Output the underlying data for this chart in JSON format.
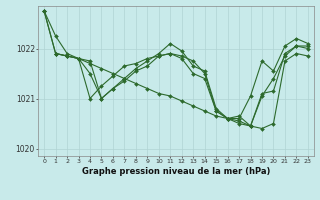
{
  "background_color": "#c8eaea",
  "grid_color": "#b0d4d4",
  "line_color": "#2d6a2d",
  "title": "Graphe pression niveau de la mer (hPa)",
  "xlim": [
    -0.5,
    23.5
  ],
  "ylim": [
    1019.85,
    1022.85
  ],
  "yticks": [
    1020,
    1021,
    1022
  ],
  "xticks": [
    0,
    1,
    2,
    3,
    4,
    5,
    6,
    7,
    8,
    9,
    10,
    11,
    12,
    13,
    14,
    15,
    16,
    17,
    18,
    19,
    20,
    21,
    22,
    23
  ],
  "series1_x": [
    0,
    1,
    2,
    3,
    4,
    5,
    6,
    7,
    8,
    9,
    10,
    11,
    12,
    13,
    14,
    15,
    16,
    17,
    18,
    19,
    20,
    21,
    22,
    23
  ],
  "series1_y": [
    1022.75,
    1022.25,
    1021.9,
    1021.8,
    1021.7,
    1021.6,
    1021.5,
    1021.4,
    1021.3,
    1021.2,
    1021.1,
    1021.05,
    1020.95,
    1020.85,
    1020.75,
    1020.65,
    1020.6,
    1020.5,
    1020.45,
    1020.4,
    1020.5,
    1021.75,
    1021.9,
    1021.85
  ],
  "series2_x": [
    0,
    1,
    2,
    3,
    4,
    5,
    6,
    7,
    8,
    9,
    10,
    11,
    12,
    13,
    14,
    15,
    16,
    17,
    18,
    19,
    20,
    21,
    22,
    23
  ],
  "series2_y": [
    1022.75,
    1021.9,
    1021.85,
    1021.8,
    1021.75,
    1021.0,
    1021.2,
    1021.4,
    1021.6,
    1021.75,
    1021.9,
    1022.1,
    1021.95,
    1021.65,
    1021.55,
    1020.8,
    1020.6,
    1020.55,
    1020.45,
    1021.1,
    1021.15,
    1021.9,
    1022.05,
    1022.0
  ],
  "series3_x": [
    0,
    1,
    2,
    3,
    4,
    5,
    6,
    7,
    8,
    9,
    10,
    11,
    12,
    13,
    14,
    15,
    16,
    17,
    18,
    19,
    20,
    21,
    22,
    23
  ],
  "series3_y": [
    1022.75,
    1021.9,
    1021.85,
    1021.8,
    1021.0,
    1021.25,
    1021.45,
    1021.65,
    1021.7,
    1021.8,
    1021.85,
    1021.9,
    1021.85,
    1021.75,
    1021.5,
    1020.75,
    1020.6,
    1020.6,
    1021.05,
    1021.75,
    1021.55,
    1022.05,
    1022.2,
    1022.1
  ],
  "series4_x": [
    1,
    2,
    3,
    4,
    5,
    6,
    7,
    8,
    9,
    10,
    11,
    12,
    13,
    14,
    15,
    16,
    17,
    18,
    19,
    20,
    21,
    22,
    23
  ],
  "series4_y": [
    1021.9,
    1021.85,
    1021.8,
    1021.5,
    1021.0,
    1021.2,
    1021.35,
    1021.55,
    1021.65,
    1021.85,
    1021.9,
    1021.8,
    1021.5,
    1021.4,
    1020.75,
    1020.6,
    1020.65,
    1020.45,
    1021.05,
    1021.4,
    1021.85,
    1022.05,
    1022.05
  ]
}
